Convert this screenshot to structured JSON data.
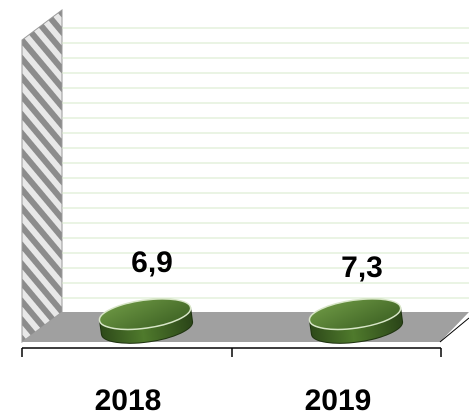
{
  "chart_data": {
    "type": "bar",
    "categories": [
      "2018",
      "2019"
    ],
    "values": [
      6.9,
      7.3
    ],
    "data_labels": [
      "6,9",
      "7,3"
    ],
    "title": "",
    "xlabel": "",
    "ylabel": "",
    "grid": true,
    "style": "3d-cylinder",
    "colors": {
      "bar_dark": "#2e4a1a",
      "bar_mid": "#4f7a2c",
      "bar_light": "#6f9a45",
      "wall_stripe": "#8c8c8c",
      "floor": "#a0a0a0",
      "gridline": "#d6e8c8",
      "background_wall": "#ffffff"
    }
  }
}
